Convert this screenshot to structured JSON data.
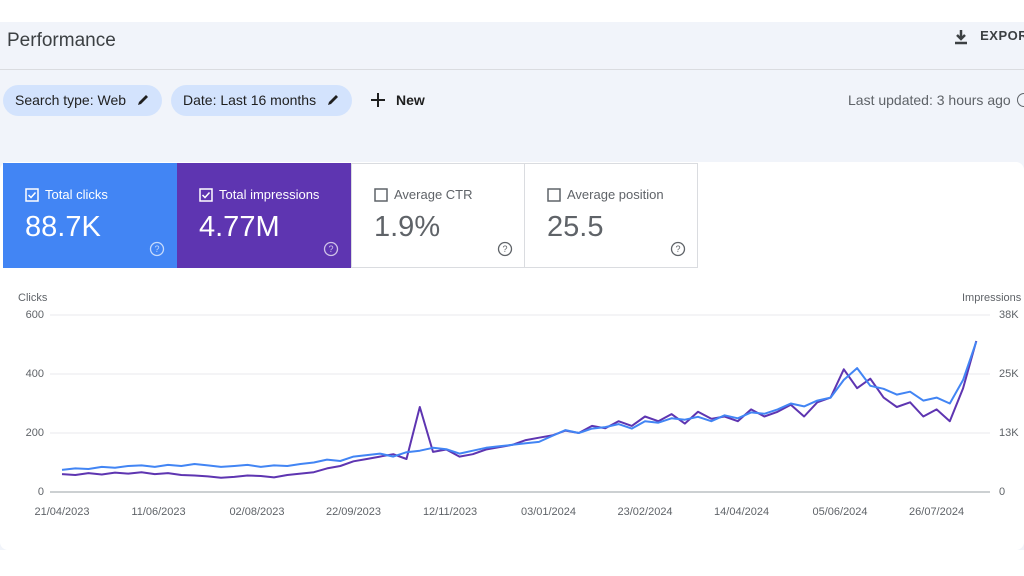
{
  "header": {
    "title": "Performance",
    "export": "EXPORT"
  },
  "filters": {
    "search_type": "Search type: Web",
    "date": "Date: Last 16 months",
    "new": "New",
    "last_updated": "Last updated: 3 hours ago"
  },
  "cards": [
    {
      "label": "Total clicks",
      "value": "88.7K"
    },
    {
      "label": "Total impressions",
      "value": "4.77M"
    },
    {
      "label": "Average CTR",
      "value": "1.9%"
    },
    {
      "label": "Average position",
      "value": "25.5"
    }
  ],
  "chart_data": {
    "type": "line",
    "x": [
      "21/04/2023",
      "28/04/2023",
      "05/05/2023",
      "12/05/2023",
      "19/05/2023",
      "26/05/2023",
      "02/06/2023",
      "09/06/2023",
      "16/06/2023",
      "23/06/2023",
      "30/06/2023",
      "07/07/2023",
      "14/07/2023",
      "21/07/2023",
      "28/07/2023",
      "04/08/2023",
      "11/08/2023",
      "18/08/2023",
      "25/08/2023",
      "01/09/2023",
      "08/09/2023",
      "15/09/2023",
      "22/09/2023",
      "29/09/2023",
      "06/10/2023",
      "13/10/2023",
      "20/10/2023",
      "27/10/2023",
      "03/11/2023",
      "10/11/2023",
      "17/11/2023",
      "24/11/2023",
      "01/12/2023",
      "08/12/2023",
      "15/12/2023",
      "22/12/2023",
      "29/12/2023",
      "05/01/2024",
      "12/01/2024",
      "19/01/2024",
      "26/01/2024",
      "02/02/2024",
      "09/02/2024",
      "16/02/2024",
      "23/02/2024",
      "01/03/2024",
      "08/03/2024",
      "15/03/2024",
      "22/03/2024",
      "29/03/2024",
      "05/04/2024",
      "12/04/2024",
      "19/04/2024",
      "26/04/2024",
      "03/05/2024",
      "10/05/2024",
      "17/05/2024",
      "24/05/2024",
      "31/05/2024",
      "07/06/2024",
      "14/06/2024",
      "21/06/2024",
      "28/06/2024",
      "05/07/2024",
      "12/07/2024",
      "19/07/2024",
      "26/07/2024",
      "02/08/2024",
      "09/08/2024",
      "16/08/2024"
    ],
    "series": [
      {
        "name": "Clicks",
        "color": "#4285f4",
        "values": [
          75,
          80,
          78,
          85,
          82,
          88,
          90,
          85,
          92,
          88,
          95,
          90,
          85,
          88,
          92,
          85,
          90,
          88,
          95,
          100,
          110,
          105,
          120,
          125,
          130,
          120,
          135,
          140,
          150,
          145,
          130,
          140,
          150,
          155,
          160,
          165,
          170,
          190,
          210,
          200,
          215,
          220,
          230,
          215,
          240,
          235,
          250,
          245,
          255,
          240,
          260,
          250,
          270,
          265,
          280,
          300,
          290,
          310,
          320,
          380,
          420,
          360,
          350,
          330,
          340,
          310,
          320,
          300,
          380,
          510
        ]
      },
      {
        "name": "Impressions",
        "color": "#5e35b1",
        "axis": "y2",
        "values": [
          3800,
          3600,
          4000,
          3700,
          4100,
          3900,
          4200,
          3800,
          4000,
          3600,
          3500,
          3300,
          3000,
          3200,
          3500,
          3400,
          3100,
          3600,
          3900,
          4200,
          5000,
          5500,
          6500,
          7000,
          7500,
          8000,
          7000,
          18000,
          8500,
          9000,
          7500,
          8000,
          9000,
          9500,
          10000,
          11000,
          11500,
          12000,
          13000,
          12500,
          14000,
          13500,
          15000,
          14000,
          16000,
          15000,
          16500,
          14500,
          17000,
          15500,
          16000,
          15000,
          17500,
          16000,
          17000,
          18500,
          16000,
          19000,
          20000,
          26000,
          22000,
          24000,
          20000,
          18000,
          19000,
          16000,
          17500,
          15000,
          22000,
          32000
        ]
      }
    ],
    "xlim": [
      "21/04/2023",
      "19/08/2024"
    ],
    "xticks": [
      "21/04/2023",
      "11/06/2023",
      "02/08/2023",
      "22/09/2023",
      "12/11/2023",
      "03/01/2024",
      "23/02/2024",
      "14/04/2024",
      "05/06/2024",
      "26/07/2024"
    ],
    "ylim": [
      0,
      600
    ],
    "yticks": [
      0,
      200,
      400,
      600
    ],
    "y2lim": [
      0,
      37500
    ],
    "y2ticks": [
      0,
      {
        "value": 12500,
        "label": "13K"
      },
      {
        "value": 25000,
        "label": "25K"
      },
      {
        "value": 37500,
        "label": "38K"
      }
    ],
    "grid": true
  }
}
